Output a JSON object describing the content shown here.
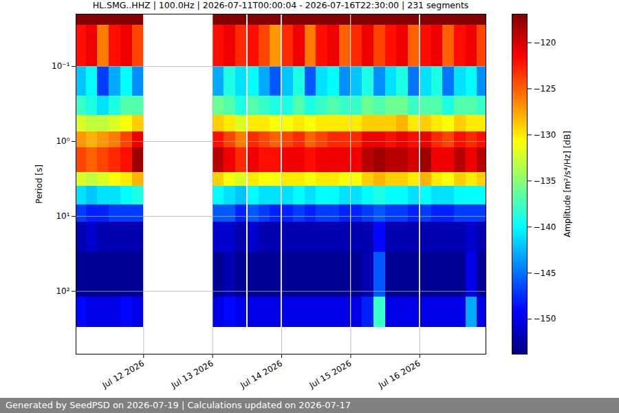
{
  "chart_data": {
    "type": "heatmap",
    "title": "HL.SMG..HHZ | 100.0Hz | 2026-07-11T00:00:04 - 2026-07-16T22:30:00 | 231 segments",
    "caption": "Generated by SeedPSD on 2026-07-19 | Calculations updated on 2026-07-17",
    "ylabel": "Period [s]",
    "colorbar_label": "Amplitude [m²/s⁴/Hz] [dB]",
    "log": "y",
    "grid": true,
    "xlim": [
      "2026-07-11T00:30",
      "2026-07-16T23:00"
    ],
    "xticks": [
      {
        "value": "2026-07-12T00:00",
        "label": "Jul 12 2026"
      },
      {
        "value": "2026-07-13T00:00",
        "label": "Jul 13 2026"
      },
      {
        "value": "2026-07-14T00:00",
        "label": "Jul 14 2026"
      },
      {
        "value": "2026-07-15T00:00",
        "label": "Jul 15 2026"
      },
      {
        "value": "2026-07-16T00:00",
        "label": "Jul 16 2026"
      }
    ],
    "ylim": [
      690,
      0.02
    ],
    "yticks": [
      {
        "value": 0.1,
        "label": "10⁻¹"
      },
      {
        "value": 1,
        "label": "10⁰"
      },
      {
        "value": 10,
        "label": "10¹"
      },
      {
        "value": 100,
        "label": "10²"
      }
    ],
    "zlim": [
      -153.8,
      -116.9
    ],
    "zticks": [
      -150,
      -145,
      -140,
      -135,
      -130,
      -125,
      -120
    ],
    "y_edges": [
      0.02,
      0.028,
      0.1,
      0.25,
      0.45,
      0.75,
      1.2,
      2.6,
      4,
      7,
      12,
      30,
      120,
      300,
      690
    ],
    "x": [
      "2026-07-11T00:30",
      "2026-07-11T04:00",
      "2026-07-11T08:00",
      "2026-07-11T12:00",
      "2026-07-11T16:00",
      "2026-07-11T20:00",
      "2026-07-13T00:05",
      "2026-07-13T04:00",
      "2026-07-13T08:00",
      "2026-07-13T12:10",
      "2026-07-13T16:00",
      "2026-07-13T20:00",
      "2026-07-14T00:10",
      "2026-07-14T04:00",
      "2026-07-14T08:00",
      "2026-07-14T12:00",
      "2026-07-14T16:00",
      "2026-07-14T20:00",
      "2026-07-15T00:10",
      "2026-07-15T04:00",
      "2026-07-15T08:00",
      "2026-07-15T12:00",
      "2026-07-15T16:00",
      "2026-07-15T20:00",
      "2026-07-16T00:10",
      "2026-07-16T04:00",
      "2026-07-16T08:00",
      "2026-07-16T12:00",
      "2026-07-16T16:00",
      "2026-07-16T20:00"
    ],
    "x_end": [
      "2026-07-11T04:00",
      "2026-07-11T08:00",
      "2026-07-11T12:00",
      "2026-07-11T16:00",
      "2026-07-11T20:00",
      "2026-07-11T23:55",
      "2026-07-13T04:00",
      "2026-07-13T08:00",
      "2026-07-13T11:50",
      "2026-07-13T16:00",
      "2026-07-13T20:00",
      "2026-07-13T23:50",
      "2026-07-14T04:00",
      "2026-07-14T08:00",
      "2026-07-14T12:00",
      "2026-07-14T16:00",
      "2026-07-14T20:00",
      "2026-07-14T23:50",
      "2026-07-15T04:00",
      "2026-07-15T08:00",
      "2026-07-15T12:00",
      "2026-07-15T16:00",
      "2026-07-15T20:00",
      "2026-07-15T23:45",
      "2026-07-16T04:00",
      "2026-07-16T08:00",
      "2026-07-16T12:00",
      "2026-07-16T16:00",
      "2026-07-16T20:00",
      "2026-07-16T23:00"
    ],
    "z": [
      [
        -117,
        -122,
        -142,
        -138,
        -132,
        -127,
        -124,
        -132,
        -141,
        -147,
        -152,
        -153,
        -149
      ],
      [
        -117,
        -121,
        -140,
        -139,
        -133,
        -128,
        -125,
        -133,
        -142,
        -148,
        -151,
        -153,
        -150
      ],
      [
        -117,
        -126,
        -147,
        -141,
        -133,
        -127,
        -124,
        -132,
        -141,
        -148,
        -152,
        -153,
        -150
      ],
      [
        -117,
        -122,
        -143,
        -139,
        -132,
        -126,
        -123,
        -131,
        -141,
        -147,
        -152,
        -153,
        -150
      ],
      [
        -117,
        -121,
        -140,
        -137,
        -131,
        -124,
        -122,
        -130,
        -140,
        -147,
        -152,
        -153,
        -149
      ],
      [
        -117,
        -124,
        -144,
        -137,
        -129,
        -121,
        -118,
        -128,
        -139,
        -147,
        -152,
        -153,
        -150
      ],
      [
        -117,
        -122,
        -143,
        -136,
        -129,
        -122,
        -119,
        -129,
        -140,
        -146,
        -151,
        -153,
        -150
      ],
      [
        -117,
        -121,
        -139,
        -137,
        -130,
        -124,
        -121,
        -131,
        -141,
        -146,
        -151,
        -152,
        -149
      ],
      [
        -117,
        -123,
        -141,
        -139,
        -132,
        -126,
        -123,
        -132,
        -142,
        -148,
        -152,
        -153,
        -150
      ],
      [
        -117,
        -122,
        -140,
        -137,
        -130,
        -123,
        -121,
        -130,
        -140,
        -146,
        -151,
        -153,
        -150
      ],
      [
        -117,
        -124,
        -143,
        -138,
        -130,
        -124,
        -122,
        -131,
        -141,
        -147,
        -152,
        -153,
        -150
      ],
      [
        -117,
        -127,
        -146,
        -139,
        -131,
        -125,
        -122,
        -131,
        -141,
        -148,
        -152,
        -153,
        -150
      ],
      [
        -117,
        -123,
        -142,
        -139,
        -131,
        -124,
        -121,
        -130,
        -141,
        -148,
        -152,
        -153,
        -150
      ],
      [
        -117,
        -121,
        -139,
        -137,
        -130,
        -123,
        -121,
        -130,
        -140,
        -147,
        -152,
        -153,
        -150
      ],
      [
        -117,
        -126,
        -146,
        -139,
        -131,
        -125,
        -122,
        -131,
        -141,
        -148,
        -152,
        -153,
        -150
      ],
      [
        -117,
        -122,
        -141,
        -138,
        -130,
        -124,
        -121,
        -130,
        -140,
        -147,
        -152,
        -153,
        -150
      ],
      [
        -117,
        -121,
        -140,
        -137,
        -130,
        -123,
        -121,
        -130,
        -140,
        -147,
        -152,
        -153,
        -150
      ],
      [
        -117,
        -125,
        -144,
        -138,
        -130,
        -123,
        -121,
        -131,
        -141,
        -148,
        -152,
        -153,
        -150
      ],
      [
        -117,
        -123,
        -142,
        -138,
        -130,
        -123,
        -121,
        -131,
        -141,
        -148,
        -152,
        -153,
        -150
      ],
      [
        -117,
        -121,
        -139,
        -136,
        -129,
        -121,
        -119,
        -129,
        -140,
        -147,
        -152,
        -152,
        -148
      ],
      [
        -117,
        -124,
        -144,
        -137,
        -129,
        -121,
        -118,
        -128,
        -139,
        -146,
        -149,
        -146,
        -138
      ],
      [
        -117,
        -122,
        -141,
        -136,
        -129,
        -122,
        -119,
        -129,
        -140,
        -147,
        -152,
        -153,
        -150
      ],
      [
        -117,
        -121,
        -139,
        -136,
        -128,
        -121,
        -119,
        -129,
        -140,
        -147,
        -152,
        -153,
        -150
      ],
      [
        -117,
        -125,
        -145,
        -138,
        -130,
        -122,
        -120,
        -130,
        -141,
        -148,
        -152,
        -153,
        -150
      ],
      [
        -117,
        -122,
        -141,
        -137,
        -129,
        -121,
        -118,
        -128,
        -140,
        -147,
        -152,
        -153,
        -150
      ],
      [
        -117,
        -121,
        -139,
        -137,
        -130,
        -123,
        -121,
        -130,
        -141,
        -148,
        -152,
        -153,
        -150
      ],
      [
        -117,
        -125,
        -145,
        -139,
        -131,
        -124,
        -121,
        -131,
        -141,
        -148,
        -152,
        -153,
        -150
      ],
      [
        -117,
        -122,
        -141,
        -137,
        -129,
        -122,
        -119,
        -129,
        -140,
        -147,
        -152,
        -153,
        -150
      ],
      [
        -117,
        -121,
        -140,
        -137,
        -130,
        -123,
        -121,
        -130,
        -140,
        -147,
        -151,
        -150,
        -143
      ],
      [
        -117,
        -124,
        -144,
        -138,
        -130,
        -122,
        -119,
        -129,
        -140,
        -147,
        -152,
        -153,
        -150
      ]
    ]
  }
}
